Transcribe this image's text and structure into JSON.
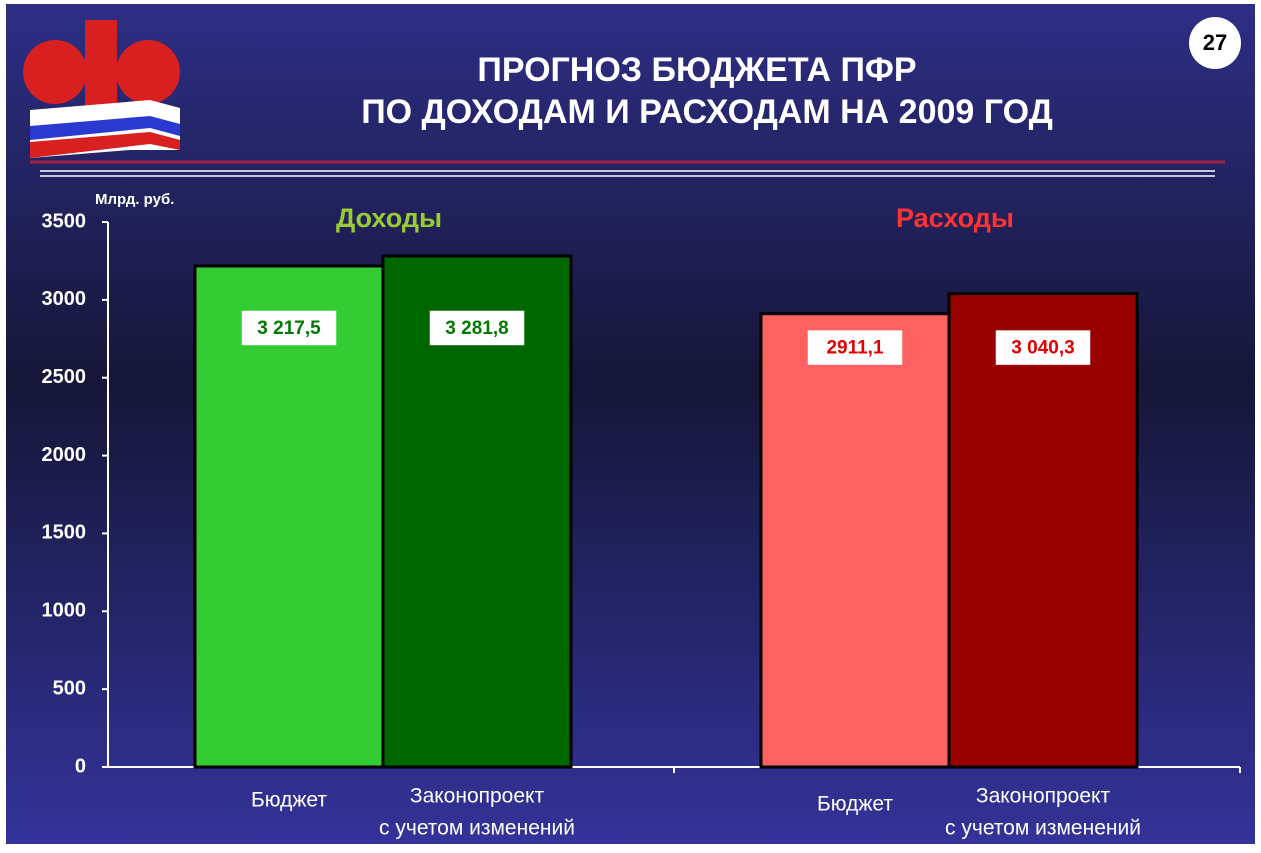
{
  "page_number": "27",
  "chart_data": {
    "type": "bar",
    "title": [
      "ПРОГНОЗ БЮДЖЕТА ПФР",
      "ПО ДОХОДАМ И РАСХОДАМ НА 2009 ГОД"
    ],
    "y_label": "Млрд. руб.",
    "ylim": [
      0,
      3500
    ],
    "yticks": [
      0,
      500,
      1000,
      1500,
      2000,
      2500,
      3000,
      3500
    ],
    "groups": [
      {
        "name": "Доходы",
        "name_color": "#99cc33",
        "label_color": "#007a00",
        "categories": [
          [
            "Бюджет"
          ],
          [
            "Законопроект",
            "с учетом изменений"
          ]
        ],
        "values": [
          3217.5,
          3281.8
        ],
        "value_labels": [
          "3 217,5",
          "3 281,8"
        ],
        "colors": [
          "#33cc33",
          "#006600"
        ]
      },
      {
        "name": "Расходы",
        "name_color": "#ff3333",
        "label_color": "#e00000",
        "categories": [
          [
            "Бюджет"
          ],
          [
            "Законопроект",
            "с учетом изменений"
          ]
        ],
        "values": [
          2911.1,
          3040.3
        ],
        "value_labels": [
          "2911,1",
          "3 040,3"
        ],
        "colors": [
          "#ff6060",
          "#990000"
        ]
      }
    ]
  }
}
